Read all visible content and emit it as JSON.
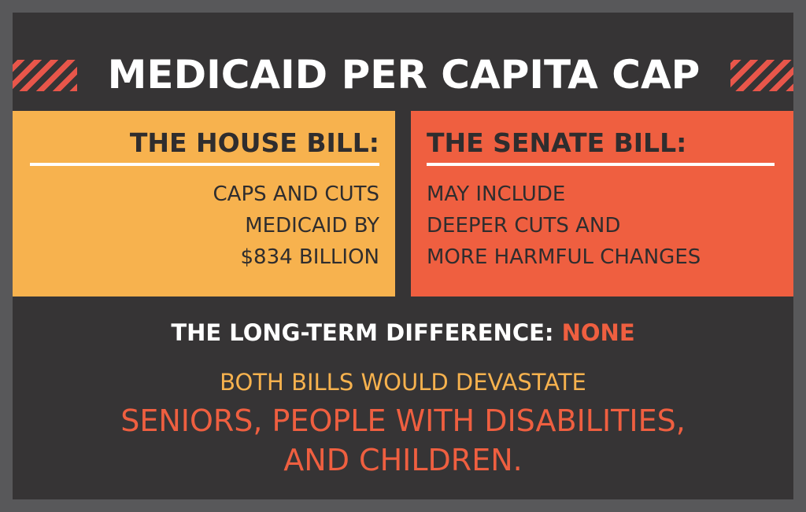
{
  "title": "MEDICAID PER CAPITA CAP",
  "house": {
    "heading": "THE HOUSE BILL:",
    "lines": [
      "CAPS AND CUTS",
      "MEDICAID BY",
      "$834 BILLION"
    ]
  },
  "senate": {
    "heading": "THE SENATE BILL:",
    "lines": [
      "MAY INCLUDE",
      "DEEPER CUTS AND",
      "MORE HARMFUL CHANGES"
    ]
  },
  "difference": {
    "label": "THE LONG-TERM DIFFERENCE:",
    "answer": "NONE"
  },
  "both_bills": "BOTH BILLS WOULD DEVASTATE",
  "groups": [
    "SENIORS, PEOPLE WITH DISABILITIES,",
    "AND CHILDREN."
  ],
  "colors": {
    "background": "#363435",
    "border": "#58585a",
    "house_box": "#f7b24e",
    "senate_box": "#ef5f40",
    "accent_orange": "#f7b24e",
    "accent_red": "#ef5f40",
    "text_dark": "#2f2d2e"
  }
}
